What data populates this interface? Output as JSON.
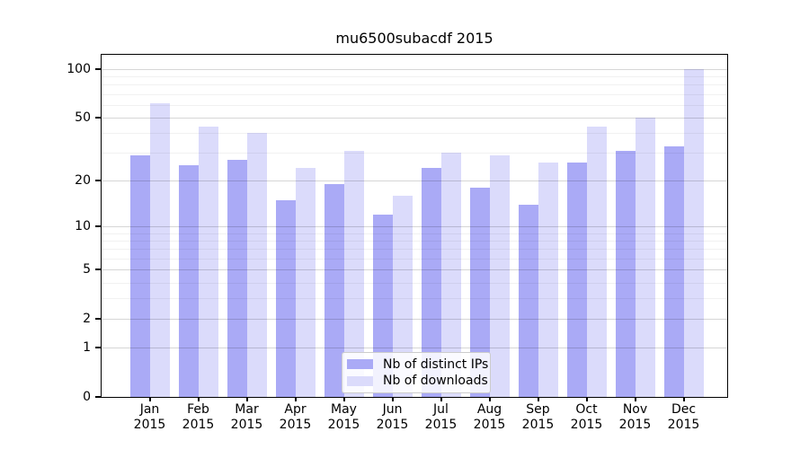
{
  "chart_data": {
    "type": "bar",
    "title": "mu6500subacdf 2015",
    "year": "2015",
    "categories": [
      "Jan",
      "Feb",
      "Mar",
      "Apr",
      "May",
      "Jun",
      "Jul",
      "Aug",
      "Sep",
      "Oct",
      "Nov",
      "Dec"
    ],
    "series": [
      {
        "name": "Nb of distinct IPs",
        "color": "#aaaaf6",
        "values": [
          29,
          25,
          27,
          15,
          19,
          12,
          24,
          18,
          14,
          26,
          31,
          33
        ]
      },
      {
        "name": "Nb of downloads",
        "color": "#dbdbfb",
        "values": [
          61,
          44,
          40,
          24,
          31,
          16,
          30,
          29,
          26,
          44,
          50,
          99
        ]
      }
    ],
    "yscale": "log1p",
    "yticks": [
      0,
      1,
      2,
      5,
      10,
      20,
      50,
      100
    ],
    "minor_gridlines": [
      3,
      4,
      6,
      7,
      8,
      9,
      30,
      40,
      60,
      70,
      80,
      90
    ],
    "ylim": [
      0,
      122
    ],
    "xlim": [
      -1,
      12
    ],
    "xlabel": "",
    "ylabel": "",
    "grid": "on",
    "legend_position": "lower center"
  },
  "colors": {
    "axis": "#000000",
    "background": "#ffffff",
    "legend_border": "#cccccc"
  }
}
